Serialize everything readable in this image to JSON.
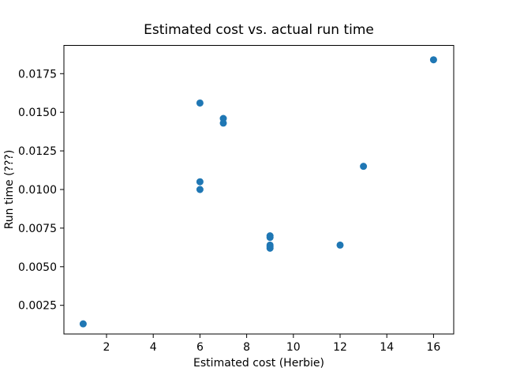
{
  "chart_data": {
    "type": "scatter",
    "title": "Estimated cost vs. actual run time",
    "xlabel": "Estimated cost (Herbie)",
    "ylabel": "Run time (???)",
    "x_ticks": [
      2,
      4,
      6,
      8,
      10,
      12,
      14,
      16
    ],
    "x_tick_labels": [
      "2",
      "4",
      "6",
      "8",
      "10",
      "12",
      "14",
      "16"
    ],
    "y_ticks": [
      0.0025,
      0.005,
      0.0075,
      0.01,
      0.0125,
      0.015,
      0.0175
    ],
    "y_tick_labels": [
      "0.0025",
      "0.0050",
      "0.0075",
      "0.0100",
      "0.0125",
      "0.0150",
      "0.0175"
    ],
    "xlim": [
      0.176,
      16.864
    ],
    "ylim": [
      0.000644,
      0.01933
    ],
    "grid": false,
    "legend": null,
    "marker": {
      "shape": "circle",
      "color": "#1f77b4",
      "radius_px": 4.5
    },
    "frame_color": "#000000",
    "points": [
      {
        "x": 1,
        "y": 0.0013
      },
      {
        "x": 6,
        "y": 0.0156
      },
      {
        "x": 6,
        "y": 0.0105
      },
      {
        "x": 6,
        "y": 0.01
      },
      {
        "x": 7,
        "y": 0.0146
      },
      {
        "x": 7,
        "y": 0.0143
      },
      {
        "x": 9,
        "y": 0.007
      },
      {
        "x": 9,
        "y": 0.0069
      },
      {
        "x": 9,
        "y": 0.0064
      },
      {
        "x": 9,
        "y": 0.0063
      },
      {
        "x": 9,
        "y": 0.0062
      },
      {
        "x": 12,
        "y": 0.0064
      },
      {
        "x": 13,
        "y": 0.0115
      },
      {
        "x": 16,
        "y": 0.0184
      }
    ]
  }
}
